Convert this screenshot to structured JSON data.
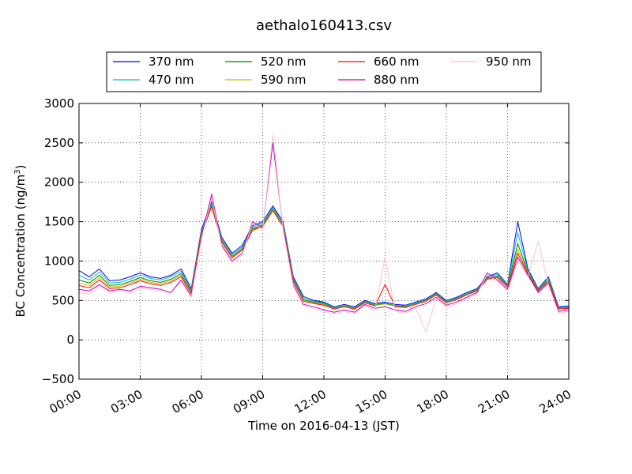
{
  "chart_data": {
    "type": "line",
    "title": "aethalo160413.csv",
    "xlabel": "Time on 2016-04-13 (JST)",
    "ylabel_main": "BC Concentration (ng/m",
    "ylabel_sup": "3",
    "ylabel_end": ")",
    "xlim": [
      0,
      24
    ],
    "ylim": [
      -500,
      3000
    ],
    "grid": true,
    "legend_position": "top",
    "x_ticks": [
      {
        "value": 0,
        "label": "00:00"
      },
      {
        "value": 3,
        "label": "03:00"
      },
      {
        "value": 6,
        "label": "06:00"
      },
      {
        "value": 9,
        "label": "09:00"
      },
      {
        "value": 12,
        "label": "12:00"
      },
      {
        "value": 15,
        "label": "15:00"
      },
      {
        "value": 18,
        "label": "18:00"
      },
      {
        "value": 21,
        "label": "21:00"
      },
      {
        "value": 24,
        "label": "24:00"
      }
    ],
    "y_ticks": [
      {
        "value": -500,
        "label": "−500"
      },
      {
        "value": 0,
        "label": "0"
      },
      {
        "value": 500,
        "label": "500"
      },
      {
        "value": 1000,
        "label": "1000"
      },
      {
        "value": 1500,
        "label": "1500"
      },
      {
        "value": 2000,
        "label": "2000"
      },
      {
        "value": 2500,
        "label": "2500"
      },
      {
        "value": 3000,
        "label": "3000"
      }
    ],
    "x": [
      0,
      0.5,
      1,
      1.5,
      2,
      2.5,
      3,
      3.5,
      4,
      4.5,
      5,
      5.5,
      6,
      6.5,
      7,
      7.5,
      8,
      8.5,
      9,
      9.5,
      10,
      10.5,
      11,
      11.5,
      12,
      12.5,
      13,
      13.5,
      14,
      14.5,
      15,
      15.5,
      16,
      16.5,
      17,
      17.5,
      18,
      18.5,
      19,
      19.5,
      20,
      20.5,
      21,
      21.5,
      22,
      22.5,
      23,
      23.5,
      24
    ],
    "series": [
      {
        "name": "370 nm",
        "color": "#0000ff",
        "values": [
          880,
          800,
          900,
          750,
          760,
          800,
          850,
          800,
          780,
          820,
          900,
          650,
          1400,
          1750,
          1300,
          1100,
          1200,
          1450,
          1500,
          1700,
          1500,
          800,
          550,
          500,
          480,
          420,
          450,
          420,
          500,
          460,
          480,
          450,
          440,
          480,
          520,
          600,
          500,
          540,
          600,
          650,
          800,
          850,
          700,
          1500,
          900,
          650,
          800,
          420,
          430
        ]
      },
      {
        "name": "470 nm",
        "color": "#00bfbf",
        "values": [
          820,
          760,
          860,
          720,
          730,
          770,
          820,
          780,
          760,
          800,
          870,
          630,
          1380,
          1730,
          1280,
          1080,
          1180,
          1430,
          1480,
          1680,
          1480,
          780,
          530,
          490,
          470,
          410,
          440,
          410,
          490,
          450,
          470,
          440,
          430,
          470,
          510,
          590,
          490,
          530,
          590,
          640,
          790,
          830,
          690,
          1360,
          880,
          640,
          780,
          410,
          420
        ]
      },
      {
        "name": "520 nm",
        "color": "#008000",
        "values": [
          760,
          720,
          820,
          690,
          700,
          740,
          790,
          750,
          730,
          770,
          840,
          610,
          1360,
          1710,
          1260,
          1060,
          1160,
          1410,
          1460,
          1660,
          1460,
          760,
          510,
          480,
          460,
          400,
          430,
          400,
          480,
          440,
          460,
          430,
          420,
          460,
          500,
          580,
          480,
          520,
          580,
          630,
          780,
          810,
          680,
          1220,
          860,
          630,
          760,
          400,
          410
        ]
      },
      {
        "name": "590 nm",
        "color": "#bfbf00",
        "values": [
          720,
          690,
          790,
          670,
          680,
          720,
          770,
          730,
          710,
          750,
          820,
          600,
          1350,
          1700,
          1250,
          1050,
          1150,
          1400,
          1450,
          1650,
          1450,
          750,
          500,
          470,
          450,
          395,
          425,
          395,
          475,
          435,
          455,
          425,
          415,
          455,
          495,
          575,
          475,
          515,
          575,
          625,
          775,
          800,
          675,
          1150,
          850,
          625,
          750,
          395,
          405
        ]
      },
      {
        "name": "660 nm",
        "color": "#ff0000",
        "values": [
          690,
          660,
          760,
          650,
          660,
          700,
          750,
          710,
          690,
          730,
          800,
          590,
          1340,
          1690,
          1240,
          1040,
          1140,
          1390,
          1440,
          1640,
          1440,
          740,
          490,
          460,
          440,
          390,
          420,
          390,
          470,
          430,
          700,
          420,
          410,
          450,
          490,
          570,
          470,
          510,
          570,
          620,
          770,
          790,
          670,
          1100,
          840,
          620,
          740,
          390,
          400
        ]
      },
      {
        "name": "880 nm",
        "color": "#bf00bf",
        "values": [
          640,
          620,
          700,
          620,
          640,
          620,
          680,
          660,
          640,
          600,
          760,
          560,
          1300,
          1850,
          1200,
          1000,
          1100,
          1500,
          1420,
          2500,
          1420,
          700,
          450,
          420,
          380,
          350,
          380,
          350,
          450,
          400,
          420,
          380,
          360,
          420,
          460,
          540,
          440,
          480,
          540,
          600,
          850,
          760,
          640,
          1050,
          820,
          600,
          720,
          360,
          380
        ]
      },
      {
        "name": "950 nm",
        "color": "#ffc0cb",
        "values": [
          600,
          580,
          680,
          600,
          620,
          600,
          660,
          640,
          620,
          590,
          740,
          540,
          1280,
          1800,
          1180,
          980,
          1080,
          1480,
          1400,
          2600,
          1400,
          680,
          430,
          400,
          360,
          330,
          360,
          330,
          430,
          380,
          1050,
          360,
          340,
          400,
          100,
          520,
          420,
          460,
          520,
          580,
          830,
          740,
          620,
          1000,
          800,
          1250,
          700,
          340,
          360
        ]
      }
    ]
  }
}
